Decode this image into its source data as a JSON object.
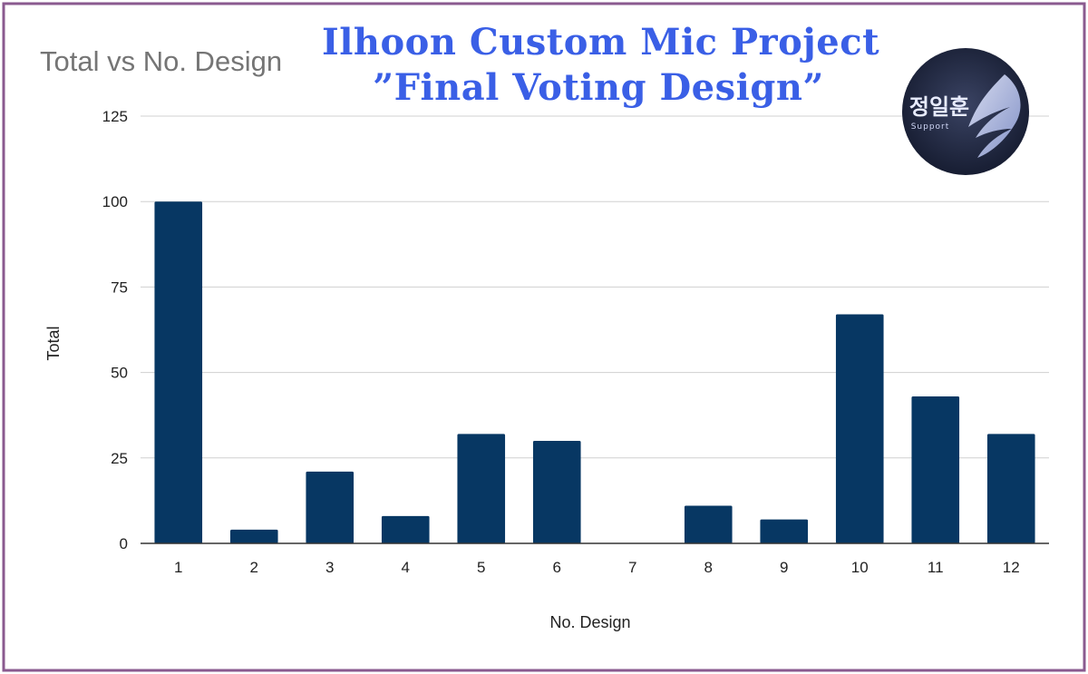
{
  "overlay": {
    "line1": "Ilhoon Custom Mic Project",
    "line2": "”Final Voting Design”"
  },
  "logo": {
    "text_main": "정일훈",
    "text_sub": "Support",
    "bg_color": "#1e2540",
    "icon": "angel-wing-icon"
  },
  "colors": {
    "bar": "#073763",
    "frame": "#8a5a8f",
    "title_blue": "#3a5fe6",
    "grid": "#d0d0d0"
  },
  "chart_data": {
    "type": "bar",
    "title": "Total vs No. Design",
    "xlabel": "No. Design",
    "ylabel": "Total",
    "categories": [
      "1",
      "2",
      "3",
      "4",
      "5",
      "6",
      "7",
      "8",
      "9",
      "10",
      "11",
      "12"
    ],
    "values": [
      100,
      4,
      21,
      8,
      32,
      30,
      0,
      11,
      7,
      67,
      43,
      32
    ],
    "ylim": [
      0,
      125
    ],
    "yticks": [
      "0",
      "25",
      "50",
      "75",
      "100",
      "125"
    ],
    "grid": true,
    "legend": "none"
  }
}
